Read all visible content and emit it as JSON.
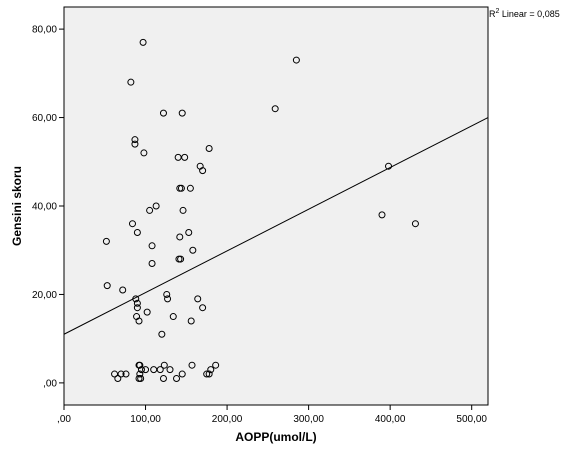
{
  "chart_data": {
    "type": "scatter",
    "xlabel": "AOPP(umol/L)",
    "ylabel": "Gensini skoru",
    "xlim": [
      0,
      520
    ],
    "ylim": [
      -5,
      85
    ],
    "x_ticks": [
      0,
      100,
      200,
      300,
      400,
      500
    ],
    "x_tick_labels": [
      ",00",
      "100,00",
      "200,00",
      "300,00",
      "400,00",
      "500,00"
    ],
    "y_ticks": [
      0,
      20,
      40,
      60,
      80
    ],
    "y_tick_labels": [
      ",00",
      "20,00",
      "40,00",
      "60,00",
      "80,00"
    ],
    "r2_label": {
      "prefix": "R",
      "sup": "2",
      "suffix": " Linear = 0,085"
    },
    "fit_line": {
      "x": [
        0,
        520
      ],
      "y": [
        11,
        60
      ]
    },
    "points": [
      {
        "x": 97,
        "y": 77
      },
      {
        "x": 82,
        "y": 68
      },
      {
        "x": 285,
        "y": 73
      },
      {
        "x": 122,
        "y": 61
      },
      {
        "x": 145,
        "y": 61
      },
      {
        "x": 259,
        "y": 62
      },
      {
        "x": 87,
        "y": 55
      },
      {
        "x": 87,
        "y": 54
      },
      {
        "x": 98,
        "y": 52
      },
      {
        "x": 140,
        "y": 51
      },
      {
        "x": 148,
        "y": 51
      },
      {
        "x": 178,
        "y": 53
      },
      {
        "x": 167,
        "y": 49
      },
      {
        "x": 170,
        "y": 48
      },
      {
        "x": 398,
        "y": 49
      },
      {
        "x": 142,
        "y": 44
      },
      {
        "x": 144,
        "y": 44
      },
      {
        "x": 155,
        "y": 44
      },
      {
        "x": 113,
        "y": 40
      },
      {
        "x": 105,
        "y": 39
      },
      {
        "x": 146,
        "y": 39
      },
      {
        "x": 390,
        "y": 38
      },
      {
        "x": 431,
        "y": 36
      },
      {
        "x": 84,
        "y": 36
      },
      {
        "x": 90,
        "y": 34
      },
      {
        "x": 153,
        "y": 34
      },
      {
        "x": 142,
        "y": 33
      },
      {
        "x": 52,
        "y": 32
      },
      {
        "x": 108,
        "y": 31
      },
      {
        "x": 158,
        "y": 30
      },
      {
        "x": 141,
        "y": 28
      },
      {
        "x": 143,
        "y": 28
      },
      {
        "x": 108,
        "y": 27
      },
      {
        "x": 53,
        "y": 22
      },
      {
        "x": 72,
        "y": 21
      },
      {
        "x": 126,
        "y": 20
      },
      {
        "x": 88,
        "y": 19
      },
      {
        "x": 127,
        "y": 19
      },
      {
        "x": 164,
        "y": 19
      },
      {
        "x": 90,
        "y": 18
      },
      {
        "x": 90,
        "y": 17
      },
      {
        "x": 170,
        "y": 17
      },
      {
        "x": 102,
        "y": 16
      },
      {
        "x": 89,
        "y": 15
      },
      {
        "x": 134,
        "y": 15
      },
      {
        "x": 92,
        "y": 14
      },
      {
        "x": 156,
        "y": 14
      },
      {
        "x": 120,
        "y": 11
      },
      {
        "x": 92,
        "y": 4
      },
      {
        "x": 93,
        "y": 4
      },
      {
        "x": 110,
        "y": 3
      },
      {
        "x": 123,
        "y": 4
      },
      {
        "x": 130,
        "y": 3
      },
      {
        "x": 157,
        "y": 4
      },
      {
        "x": 186,
        "y": 4
      },
      {
        "x": 180,
        "y": 3
      },
      {
        "x": 95,
        "y": 3
      },
      {
        "x": 100,
        "y": 3
      },
      {
        "x": 118,
        "y": 3
      },
      {
        "x": 62,
        "y": 2
      },
      {
        "x": 70,
        "y": 2
      },
      {
        "x": 76,
        "y": 2
      },
      {
        "x": 93,
        "y": 2
      },
      {
        "x": 145,
        "y": 2
      },
      {
        "x": 175,
        "y": 2
      },
      {
        "x": 178,
        "y": 2
      },
      {
        "x": 66,
        "y": 1
      },
      {
        "x": 92,
        "y": 1
      },
      {
        "x": 94,
        "y": 1
      },
      {
        "x": 122,
        "y": 1
      },
      {
        "x": 138,
        "y": 1
      }
    ],
    "colors": {
      "background": "#ffffff",
      "plot_area": "#f0f0f0",
      "marker_stroke": "#000000",
      "fit_line": "#000000"
    },
    "grid": false,
    "marker": "hollow-circle"
  }
}
